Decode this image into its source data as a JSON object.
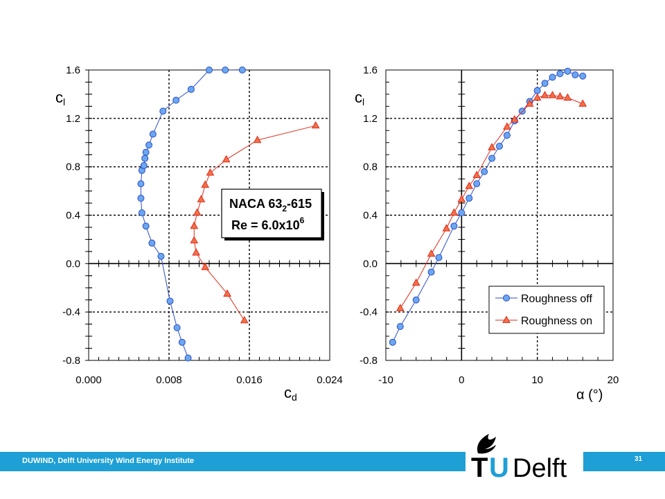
{
  "footer": {
    "text": "DUWIND, Delft University Wind Energy Institute",
    "page": "31"
  },
  "logo": {
    "text_tu": "TU",
    "text_delft": "Delft"
  },
  "annotation": {
    "line1_a": "NACA 63",
    "line1_sub": "2",
    "line1_b": "-615",
    "line2_a": "Re = 6.0x10",
    "line2_sup": "6"
  },
  "legend": {
    "off": "Roughness off",
    "on": "Roughness on"
  },
  "colors": {
    "off": "#6aa7f0",
    "on": "#f0724a",
    "off_line": "#2c4cc4",
    "on_line": "#e02a18",
    "footer": "#1e9fd6"
  },
  "chart_data": [
    {
      "type": "scatter",
      "xlabel": "c_d",
      "ylabel": "c_l",
      "xlim": [
        0,
        0.024
      ],
      "ylim": [
        -0.8,
        1.6
      ],
      "xticks": [
        "0.000",
        "0.008",
        "0.016",
        "0.024"
      ],
      "yticks": [
        "-0.8",
        "-0.4",
        "0.0",
        "0.4",
        "0.8",
        "1.2",
        "1.6"
      ],
      "grid": "dashed major lines",
      "series": [
        {
          "name": "Roughness off",
          "x": [
            0.0099,
            0.0093,
            0.0088,
            0.0081,
            0.0072,
            0.0063,
            0.0057,
            0.0053,
            0.0052,
            0.0052,
            0.0053,
            0.0055,
            0.0056,
            0.0057,
            0.006,
            0.0064,
            0.0074,
            0.0087,
            0.0102,
            0.012,
            0.0136,
            0.0153
          ],
          "y": [
            -0.78,
            -0.65,
            -0.53,
            -0.31,
            0.06,
            0.17,
            0.31,
            0.42,
            0.54,
            0.66,
            0.77,
            0.81,
            0.87,
            0.92,
            0.98,
            1.07,
            1.26,
            1.35,
            1.44,
            1.6,
            1.6,
            1.6
          ]
        },
        {
          "name": "Roughness on",
          "x": [
            0.0155,
            0.0138,
            0.0116,
            0.0107,
            0.0105,
            0.0105,
            0.0108,
            0.0112,
            0.0116,
            0.0121,
            0.0137,
            0.0168,
            0.0226
          ],
          "y": [
            -0.47,
            -0.25,
            -0.03,
            0.09,
            0.19,
            0.31,
            0.42,
            0.53,
            0.65,
            0.75,
            0.86,
            1.02,
            1.14
          ]
        }
      ]
    },
    {
      "type": "scatter",
      "xlabel": "α (°)",
      "ylabel": "c_l",
      "xlim": [
        -10,
        20
      ],
      "ylim": [
        -0.8,
        1.6
      ],
      "xticks": [
        "-10",
        "0",
        "10",
        "20"
      ],
      "yticks": [
        "-0.8",
        "-0.4",
        "0.0",
        "0.4",
        "0.8",
        "1.2",
        "1.6"
      ],
      "grid": "dashed major lines",
      "legend_position": "bottom-right",
      "series": [
        {
          "name": "Roughness off",
          "x": [
            -9.1,
            -8.1,
            -6.0,
            -4.0,
            -3.0,
            -1.0,
            0.0,
            1.0,
            2.0,
            3.0,
            4.0,
            5.0,
            6.0,
            7.0,
            8.0,
            9.0,
            10.0,
            11.0,
            12.0,
            13.0,
            14.0,
            15.0,
            16.0
          ],
          "y": [
            -0.65,
            -0.52,
            -0.3,
            -0.07,
            0.05,
            0.31,
            0.42,
            0.54,
            0.66,
            0.76,
            0.87,
            0.97,
            1.06,
            1.18,
            1.26,
            1.34,
            1.43,
            1.49,
            1.54,
            1.57,
            1.59,
            1.56,
            1.55
          ]
        },
        {
          "name": "Roughness on",
          "x": [
            -8.1,
            -6.0,
            -4.0,
            -2.0,
            -1.0,
            0.0,
            1.0,
            2.0,
            4.0,
            6.0,
            7.0,
            9.0,
            10.0,
            11.0,
            12.0,
            13.0,
            14.0,
            16.0
          ],
          "y": [
            -0.37,
            -0.16,
            0.08,
            0.29,
            0.42,
            0.53,
            0.64,
            0.73,
            0.96,
            1.13,
            1.19,
            1.32,
            1.37,
            1.39,
            1.39,
            1.38,
            1.37,
            1.32
          ]
        }
      ]
    }
  ]
}
